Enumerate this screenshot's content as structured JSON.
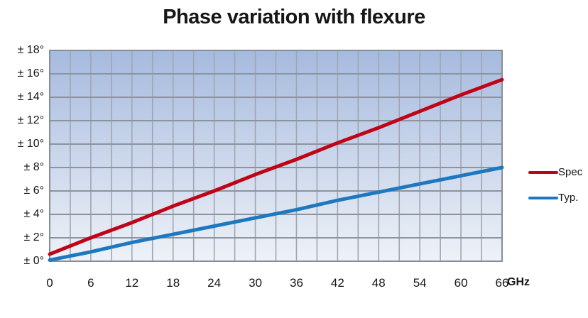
{
  "title": "Phase variation with flexure",
  "x_axis_unit": "GHz",
  "chart_data": {
    "type": "line",
    "title": "Phase variation with flexure",
    "xlabel": "GHz",
    "ylabel": "",
    "xlim": [
      0,
      66
    ],
    "ylim": [
      0,
      18
    ],
    "x_grid_step": 3,
    "y_grid_step": 2,
    "grid": true,
    "legend_position": "right",
    "x": [
      0,
      6,
      12,
      18,
      24,
      30,
      36,
      42,
      48,
      54,
      60,
      66
    ],
    "series": [
      {
        "name": "Spec",
        "color": "#c00418",
        "line_width": 5,
        "values": [
          0.6,
          2.0,
          3.3,
          4.7,
          6.0,
          7.4,
          8.7,
          10.1,
          11.4,
          12.8,
          14.2,
          15.5
        ]
      },
      {
        "name": "Typ.",
        "color": "#1e78c0",
        "line_width": 5,
        "values": [
          0.1,
          0.8,
          1.6,
          2.3,
          3.0,
          3.7,
          4.4,
          5.2,
          5.9,
          6.6,
          7.3,
          8.0
        ]
      }
    ],
    "x_ticks": [
      {
        "v": 0,
        "label": "0"
      },
      {
        "v": 6,
        "label": "6"
      },
      {
        "v": 12,
        "label": "12"
      },
      {
        "v": 18,
        "label": "18"
      },
      {
        "v": 24,
        "label": "24"
      },
      {
        "v": 30,
        "label": "30"
      },
      {
        "v": 36,
        "label": "36"
      },
      {
        "v": 42,
        "label": "42"
      },
      {
        "v": 48,
        "label": "48"
      },
      {
        "v": 54,
        "label": "54"
      },
      {
        "v": 60,
        "label": "60"
      },
      {
        "v": 66,
        "label": "66"
      }
    ],
    "y_ticks": [
      {
        "v": 0,
        "label": "± 0°"
      },
      {
        "v": 2,
        "label": "± 2°"
      },
      {
        "v": 4,
        "label": "± 4°"
      },
      {
        "v": 6,
        "label": "± 6°"
      },
      {
        "v": 8,
        "label": "± 8°"
      },
      {
        "v": 10,
        "label": "± 10°"
      },
      {
        "v": 12,
        "label": "± 12°"
      },
      {
        "v": 14,
        "label": "± 14°"
      },
      {
        "v": 16,
        "label": "± 16°"
      },
      {
        "v": 18,
        "label": "± 18°"
      }
    ],
    "colors": {
      "plot_gradient_top": "#a6bade",
      "plot_gradient_bottom": "#eef2f8",
      "gridline_vertical": "#a0a6b0",
      "gridline_horizontal": "#8d939e",
      "plot_border": "#868e99",
      "text": "#161616"
    }
  }
}
